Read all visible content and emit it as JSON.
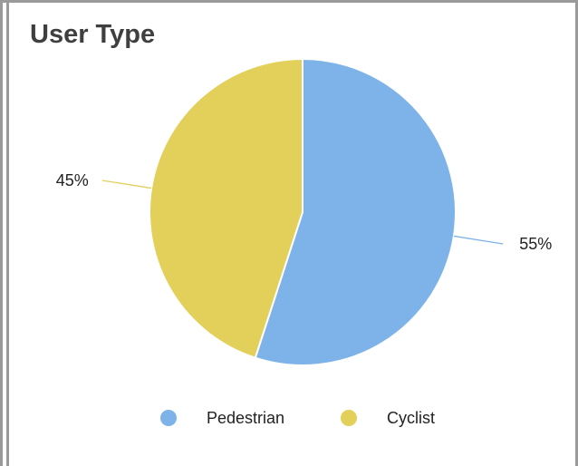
{
  "panel": {
    "title": "User Type"
  },
  "chart_data": {
    "type": "pie",
    "title": "User Type",
    "legend_position": "bottom",
    "slices": [
      {
        "label": "Pedestrian",
        "value": 55,
        "value_label": "55%",
        "color": "#7db3e8"
      },
      {
        "label": "Cyclist",
        "value": 45,
        "value_label": "45%",
        "color": "#e2d05a"
      }
    ]
  }
}
